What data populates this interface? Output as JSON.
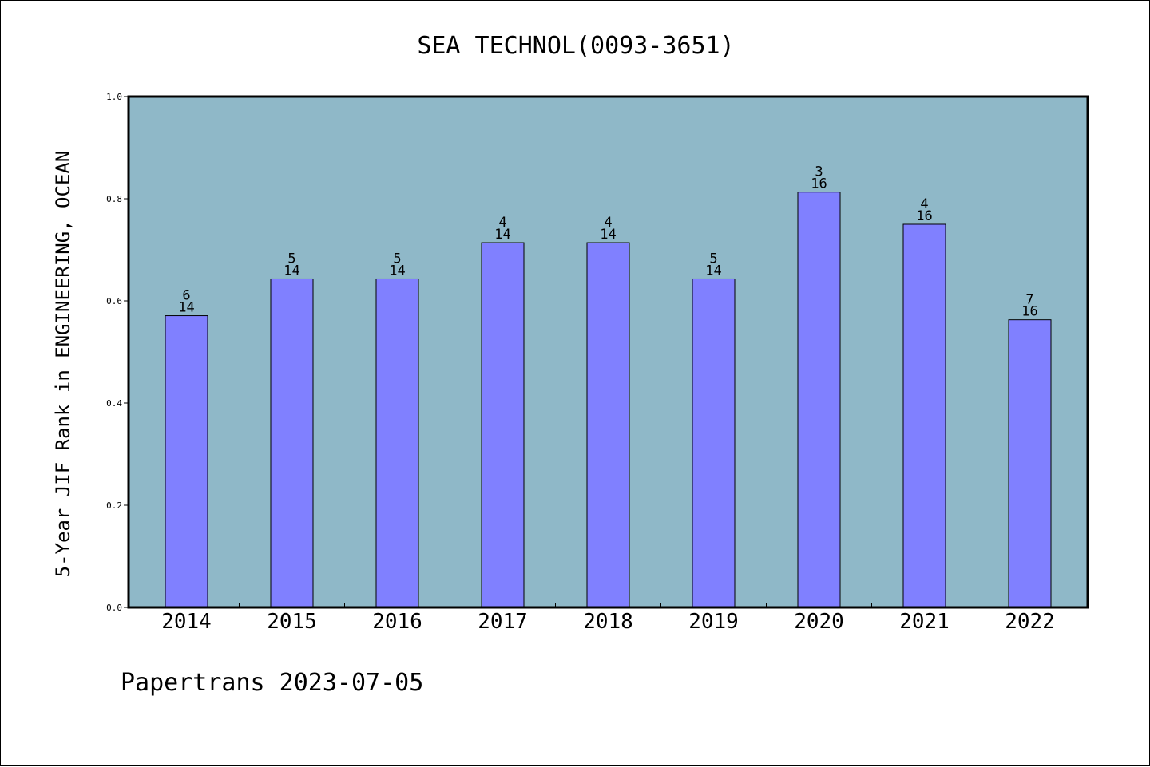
{
  "chart_data": {
    "type": "bar",
    "title": "SEA TECHNOL(0093-3651)",
    "xlabel": "",
    "ylabel": "5-Year JIF Rank in ENGINEERING, OCEAN",
    "categories": [
      "2014",
      "2015",
      "2016",
      "2017",
      "2018",
      "2019",
      "2020",
      "2021",
      "2022"
    ],
    "values": [
      0.571,
      0.643,
      0.643,
      0.714,
      0.714,
      0.643,
      0.813,
      0.75,
      0.563
    ],
    "label_top": [
      "6",
      "5",
      "5",
      "4",
      "4",
      "5",
      "3",
      "4",
      "7"
    ],
    "label_bottom": [
      "14",
      "14",
      "14",
      "14",
      "14",
      "14",
      "16",
      "16",
      "16"
    ],
    "ylim": [
      0,
      1.0
    ],
    "yticks": [
      "0.0",
      "0.2",
      "0.4",
      "0.6",
      "0.8",
      "1.0"
    ],
    "grid": false,
    "colors": {
      "plot_background": "#8fb8c8",
      "bar_fill": "#8080ff",
      "bar_stroke": "#000000"
    }
  },
  "footer": {
    "text": "Papertrans 2023-07-05"
  }
}
